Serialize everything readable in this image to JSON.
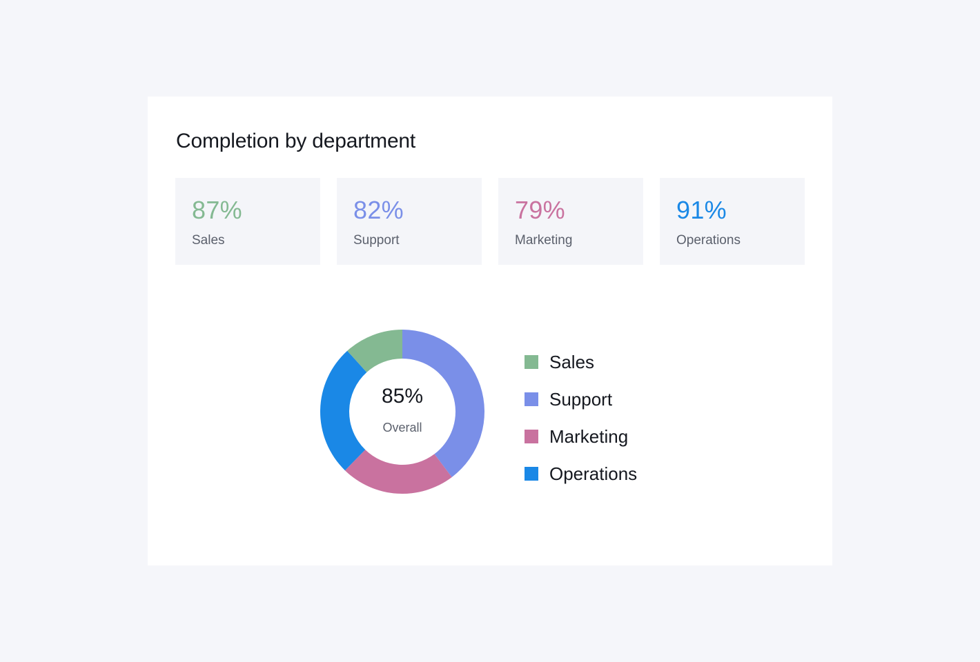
{
  "card": {
    "title": "Completion by department"
  },
  "stats": [
    {
      "value": "87%",
      "label": "Sales",
      "color": "#84b992"
    },
    {
      "value": "82%",
      "label": "Support",
      "color": "#7a8fe8"
    },
    {
      "value": "79%",
      "label": "Marketing",
      "color": "#c9729f"
    },
    {
      "value": "91%",
      "label": "Operations",
      "color": "#1a88e6"
    }
  ],
  "chart_data": {
    "type": "pie",
    "variant": "donut",
    "title": "Completion by department",
    "center_value": "85%",
    "center_label": "Overall",
    "start_angle_deg": -90,
    "order": [
      "Support",
      "Marketing",
      "Operations",
      "Sales"
    ],
    "slices": [
      {
        "name": "Support",
        "share": 39.7,
        "color": "#7a8fe8"
      },
      {
        "name": "Marketing",
        "share": 22.6,
        "color": "#c9729f"
      },
      {
        "name": "Operations",
        "share": 26.0,
        "color": "#1a88e6"
      },
      {
        "name": "Sales",
        "share": 11.7,
        "color": "#84b992"
      }
    ],
    "legend": [
      {
        "label": "Sales",
        "color": "#84b992"
      },
      {
        "label": "Support",
        "color": "#7a8fe8"
      },
      {
        "label": "Marketing",
        "color": "#c9729f"
      },
      {
        "label": "Operations",
        "color": "#1a88e6"
      }
    ],
    "legend_position": "right"
  }
}
